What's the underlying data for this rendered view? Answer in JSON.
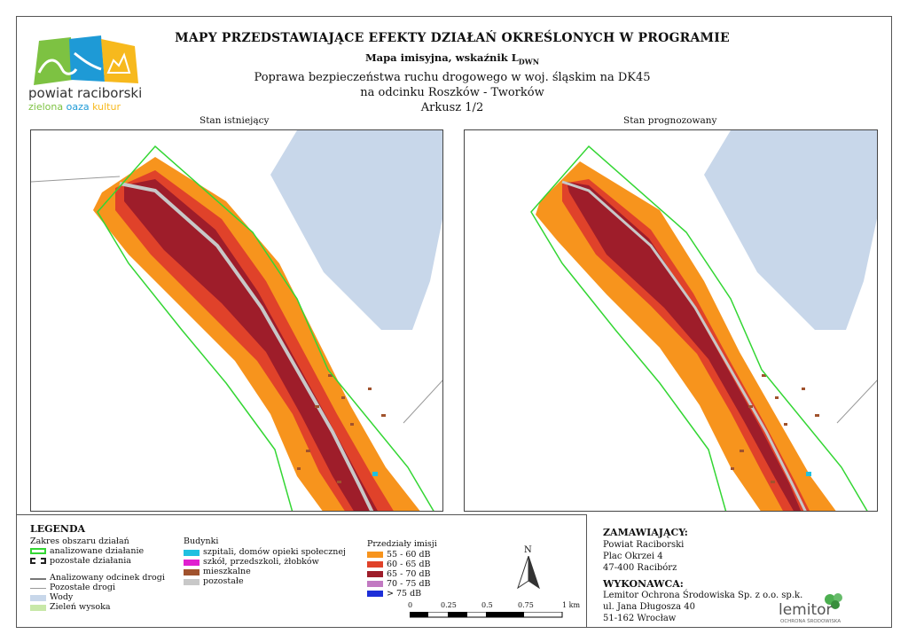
{
  "header": {
    "title": "MAPY PRZEDSTAWIAJĄCE EFEKTY DZIAŁAŃ OKREŚLONYCH W PROGRAMIE",
    "subtitle_main": "Mapa imisyjna, wskaźnik L",
    "subtitle_sub": "DWN",
    "line1": "Poprawa bezpieczeństwa ruchu drogowego w woj. śląskim na DK45",
    "line2": "na odcinku Roszków - Tworków",
    "sheet": "Arkusz 1/2"
  },
  "logo": {
    "line1": "powiat raciborski",
    "line2_a": "zielona",
    "line2_b": "oaza",
    "line2_c": "kultur"
  },
  "panels": {
    "left_label": "Stan istniejący",
    "right_label": "Stan prognozowany"
  },
  "legend": {
    "heading": "LEGENDA",
    "area_heading": "Zakres obszaru działań",
    "area_items": [
      "analizowane działanie",
      "pozostałe działania"
    ],
    "road_items": [
      "Analizowany odcinek drogi",
      "Pozostałe drogi",
      "Wody",
      "Zieleń wysoka"
    ],
    "buildings_heading": "Budynki",
    "building_items": [
      "szpitali, domów opieki społecznej",
      "szkół, przedszkoli, żłobków",
      "mieszkalne",
      "pozostałe"
    ],
    "ranges_heading": "Przedziały imisji",
    "ranges": [
      {
        "label": "55 - 60 dB",
        "color": "#f7941d"
      },
      {
        "label": "60 - 65 dB",
        "color": "#e0422a"
      },
      {
        "label": "65 - 70 dB",
        "color": "#9e1d2a"
      },
      {
        "label": "70 - 75 dB",
        "color": "#c27ac2"
      },
      {
        "label": "> 75 dB",
        "color": "#1d2fd8"
      }
    ],
    "north": "N",
    "scale_ticks": [
      "0",
      "0.25",
      "0.5",
      "0.75",
      "1 km"
    ]
  },
  "colors": {
    "water": "#c8d7ea",
    "area": "#33d633",
    "road": "#c8c8c8"
  },
  "client": {
    "heading": "ZAMAWIAJĄCY:",
    "lines": [
      "Powiat Raciborski",
      "Plac Okrzei 4",
      "47-400 Racibórz"
    ]
  },
  "contractor": {
    "heading": "WYKONAWCA:",
    "lines": [
      "Lemitor Ochrona Środowiska Sp. z o.o. sp.k.",
      "ul. Jana Długosza 40",
      "51-162 Wrocław"
    ],
    "brand": "lemitor",
    "brand_sub": "OCHRONA ŚRODOWISKA"
  }
}
